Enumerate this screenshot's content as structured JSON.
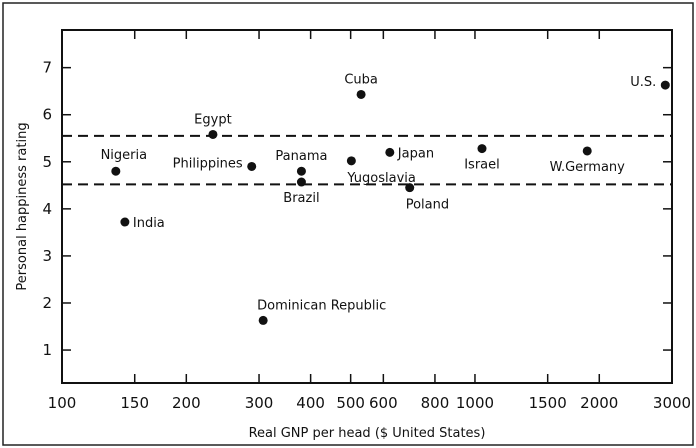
{
  "chart_data": {
    "type": "scatter",
    "xlabel": "Real GNP per head ($ United States)",
    "ylabel": "Personal happiness rating",
    "x_scale": "log",
    "xlim": [
      100,
      3000
    ],
    "ylim": [
      0.3,
      7.8
    ],
    "x_ticks": [
      {
        "value": 100,
        "label": "100"
      },
      {
        "value": 150,
        "label": "150"
      },
      {
        "value": 200,
        "label": "200"
      },
      {
        "value": 300,
        "label": "300"
      },
      {
        "value": 400,
        "label": "400"
      },
      {
        "value": 500,
        "label": "500"
      },
      {
        "value": 600,
        "label": "600"
      },
      {
        "value": 800,
        "label": "800"
      },
      {
        "value": 1000,
        "label": "1000"
      },
      {
        "value": 1500,
        "label": "1500"
      },
      {
        "value": 2000,
        "label": "2000"
      },
      {
        "value": 3000,
        "label": "3000"
      }
    ],
    "y_ticks": [
      {
        "value": 1,
        "label": "1"
      },
      {
        "value": 2,
        "label": "2"
      },
      {
        "value": 3,
        "label": "3"
      },
      {
        "value": 4,
        "label": "4"
      },
      {
        "value": 5,
        "label": "5"
      },
      {
        "value": 6,
        "label": "6"
      },
      {
        "value": 7,
        "label": "7"
      }
    ],
    "reference_lines": [
      5.55,
      4.52
    ],
    "grid": false,
    "points": [
      {
        "label": "Nigeria",
        "x": 135,
        "y": 4.8,
        "label_pos": "above-left"
      },
      {
        "label": "India",
        "x": 142,
        "y": 3.72,
        "label_pos": "right"
      },
      {
        "label": "Egypt",
        "x": 232,
        "y": 5.58,
        "label_pos": "above"
      },
      {
        "label": "Philippines",
        "x": 288,
        "y": 4.9,
        "label_pos": "left"
      },
      {
        "label": "Panama",
        "x": 380,
        "y": 4.8,
        "label_pos": "above"
      },
      {
        "label": "Brazil",
        "x": 380,
        "y": 4.57,
        "label_pos": "below"
      },
      {
        "label": "Dominican Republic",
        "x": 307,
        "y": 1.63,
        "label_pos": "above-right"
      },
      {
        "label": "Yugoslavia",
        "x": 502,
        "y": 5.02,
        "label_pos": "below-right"
      },
      {
        "label": "Cuba",
        "x": 530,
        "y": 6.43,
        "label_pos": "above"
      },
      {
        "label": "Japan",
        "x": 622,
        "y": 5.2,
        "label_pos": "right"
      },
      {
        "label": "Poland",
        "x": 695,
        "y": 4.45,
        "label_pos": "below-right"
      },
      {
        "label": "Israel",
        "x": 1040,
        "y": 5.28,
        "label_pos": "below"
      },
      {
        "label": "W.Germany",
        "x": 1870,
        "y": 5.23,
        "label_pos": "below"
      },
      {
        "label": "U.S.",
        "x": 2890,
        "y": 6.63,
        "label_pos": "left"
      }
    ]
  }
}
